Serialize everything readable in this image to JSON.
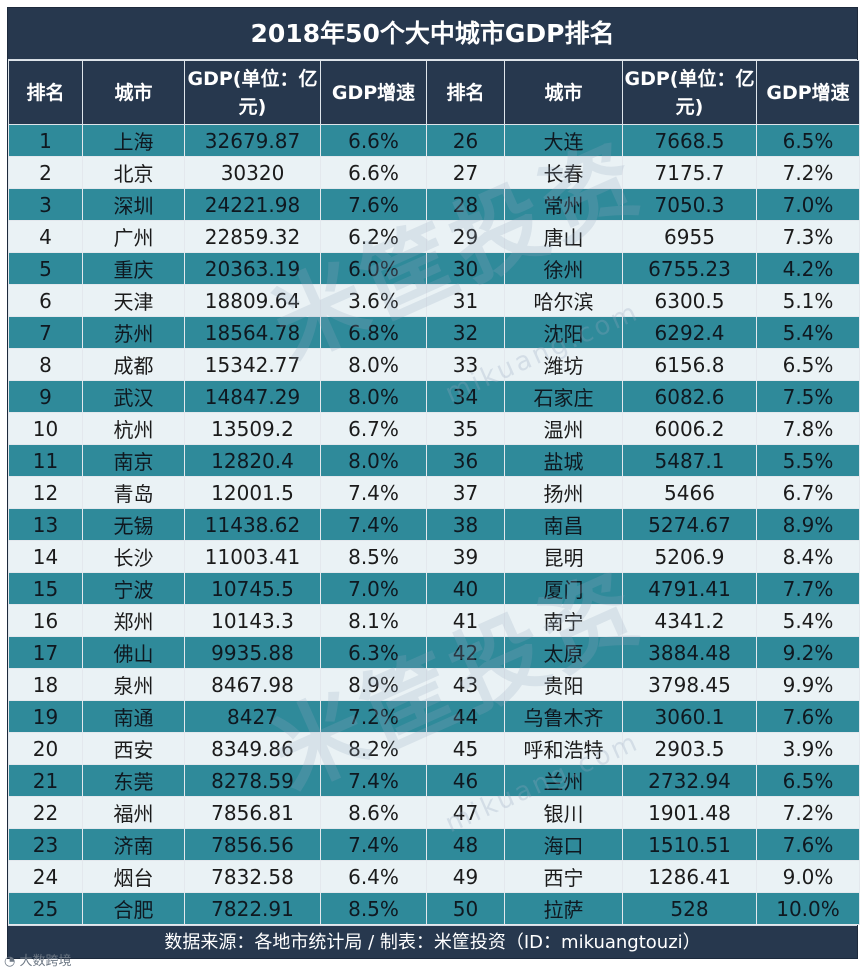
{
  "title": "2018年50个大中城市GDP排名",
  "headers": [
    "排名",
    "城市",
    "GDP(单位：亿元)",
    "GDP增速",
    "排名",
    "城市",
    "GDP(单位：亿元)",
    "GDP增速"
  ],
  "rows": [
    [
      "1",
      "上海",
      "32679.87",
      "6.6%",
      "26",
      "大连",
      "7668.5",
      "6.5%"
    ],
    [
      "2",
      "北京",
      "30320",
      "6.6%",
      "27",
      "长春",
      "7175.7",
      "7.2%"
    ],
    [
      "3",
      "深圳",
      "24221.98",
      "7.6%",
      "28",
      "常州",
      "7050.3",
      "7.0%"
    ],
    [
      "4",
      "广州",
      "22859.32",
      "6.2%",
      "29",
      "唐山",
      "6955",
      "7.3%"
    ],
    [
      "5",
      "重庆",
      "20363.19",
      "6.0%",
      "30",
      "徐州",
      "6755.23",
      "4.2%"
    ],
    [
      "6",
      "天津",
      "18809.64",
      "3.6%",
      "31",
      "哈尔滨",
      "6300.5",
      "5.1%"
    ],
    [
      "7",
      "苏州",
      "18564.78",
      "6.8%",
      "32",
      "沈阳",
      "6292.4",
      "5.4%"
    ],
    [
      "8",
      "成都",
      "15342.77",
      "8.0%",
      "33",
      "潍坊",
      "6156.8",
      "6.5%"
    ],
    [
      "9",
      "武汉",
      "14847.29",
      "8.0%",
      "34",
      "石家庄",
      "6082.6",
      "7.5%"
    ],
    [
      "10",
      "杭州",
      "13509.2",
      "6.7%",
      "35",
      "温州",
      "6006.2",
      "7.8%"
    ],
    [
      "11",
      "南京",
      "12820.4",
      "8.0%",
      "36",
      "盐城",
      "5487.1",
      "5.5%"
    ],
    [
      "12",
      "青岛",
      "12001.5",
      "7.4%",
      "37",
      "扬州",
      "5466",
      "6.7%"
    ],
    [
      "13",
      "无锡",
      "11438.62",
      "7.4%",
      "38",
      "南昌",
      "5274.67",
      "8.9%"
    ],
    [
      "14",
      "长沙",
      "11003.41",
      "8.5%",
      "39",
      "昆明",
      "5206.9",
      "8.4%"
    ],
    [
      "15",
      "宁波",
      "10745.5",
      "7.0%",
      "40",
      "厦门",
      "4791.41",
      "7.7%"
    ],
    [
      "16",
      "郑州",
      "10143.3",
      "8.1%",
      "41",
      "南宁",
      "4341.2",
      "5.4%"
    ],
    [
      "17",
      "佛山",
      "9935.88",
      "6.3%",
      "42",
      "太原",
      "3884.48",
      "9.2%"
    ],
    [
      "18",
      "泉州",
      "8467.98",
      "8.9%",
      "43",
      "贵阳",
      "3798.45",
      "9.9%"
    ],
    [
      "19",
      "南通",
      "8427",
      "7.2%",
      "44",
      "乌鲁木齐",
      "3060.1",
      "7.6%"
    ],
    [
      "20",
      "西安",
      "8349.86",
      "8.2%",
      "45",
      "呼和浩特",
      "2903.5",
      "3.9%"
    ],
    [
      "21",
      "东莞",
      "8278.59",
      "7.4%",
      "46",
      "兰州",
      "2732.94",
      "6.5%"
    ],
    [
      "22",
      "福州",
      "7856.81",
      "8.6%",
      "47",
      "银川",
      "1901.48",
      "7.2%"
    ],
    [
      "23",
      "济南",
      "7856.56",
      "7.4%",
      "48",
      "海口",
      "1510.51",
      "7.6%"
    ],
    [
      "24",
      "烟台",
      "7832.58",
      "6.4%",
      "49",
      "西宁",
      "1286.41",
      "9.0%"
    ],
    [
      "25",
      "合肥",
      "7822.91",
      "8.5%",
      "50",
      "拉萨",
      "528",
      "10.0%"
    ]
  ],
  "footer": "数据来源：各地市统计局 / 制表：米筐投资（ID：mikuangtouzi）",
  "watermark": {
    "brand": "米筐投资",
    "domain": "mikuang.com"
  },
  "corner_logo": "大数跨境",
  "colors": {
    "header_bg": "#27384e",
    "row_teal": "#2f8a9a",
    "row_light": "#eaf2f5"
  }
}
